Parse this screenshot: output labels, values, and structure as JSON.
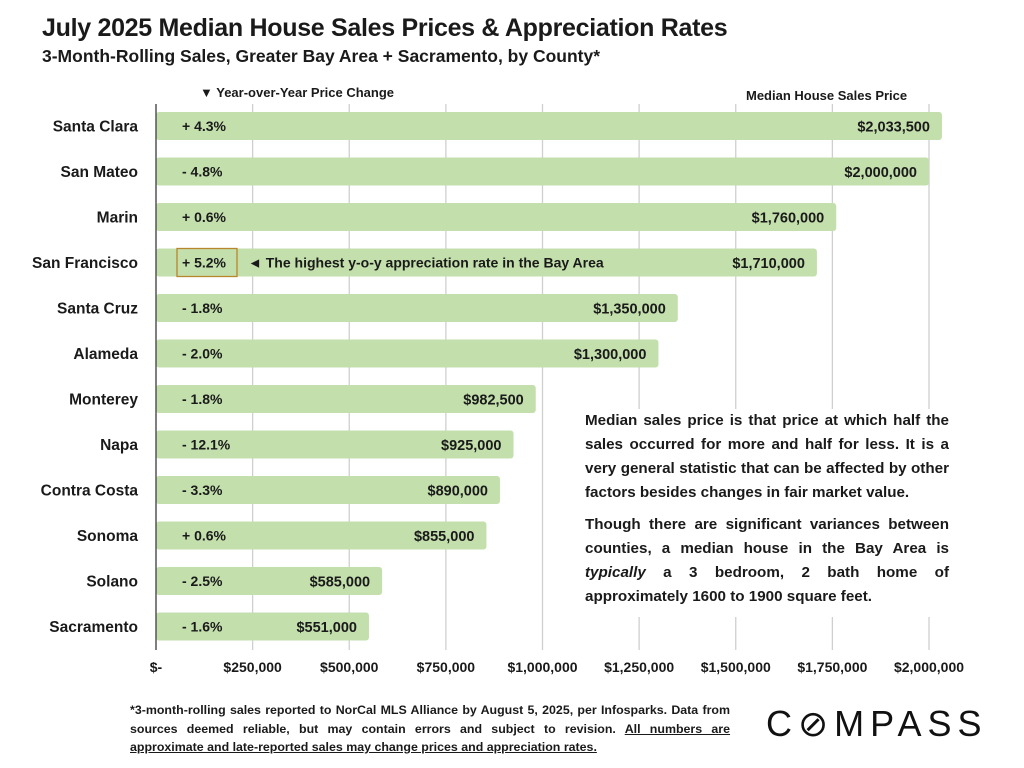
{
  "chart_data": {
    "type": "bar",
    "orientation": "horizontal",
    "title": "July 2025 Median House Sales Prices & Appreciation Rates",
    "subtitle": "3-Month-Rolling Sales, Greater Bay Area + Sacramento, by County*",
    "yoy_header": "▼ Year-over-Year Price Change",
    "value_header": "Median House Sales Price",
    "xlabel": "",
    "ylabel": "",
    "xlim": [
      0,
      2000000
    ],
    "grid": true,
    "x_ticks": [
      0,
      250000,
      500000,
      750000,
      1000000,
      1250000,
      1500000,
      1750000,
      2000000
    ],
    "x_tick_labels": [
      "$-",
      "$250,000",
      "$500,000",
      "$750,000",
      "$1,000,000",
      "$1,250,000",
      "$1,500,000",
      "$1,750,000",
      "$2,000,000"
    ],
    "bar_color": "#c3dfac",
    "categories": [
      "Santa Clara",
      "San Mateo",
      "Marin",
      "San Francisco",
      "Santa Cruz",
      "Alameda",
      "Monterey",
      "Napa",
      "Contra Costa",
      "Sonoma",
      "Solano",
      "Sacramento"
    ],
    "values": [
      2033500,
      2000000,
      1760000,
      1710000,
      1350000,
      1300000,
      982500,
      925000,
      890000,
      855000,
      585000,
      551000
    ],
    "value_labels": [
      "$2,033,500",
      "$2,000,000",
      "$1,760,000",
      "$1,710,000",
      "$1,350,000",
      "$1,300,000",
      "$982,500",
      "$925,000",
      "$890,000",
      "$855,000",
      "$585,000",
      "$551,000"
    ],
    "yoy_change_pct": [
      4.3,
      -4.8,
      0.6,
      5.2,
      -1.8,
      -2.0,
      -1.8,
      -12.1,
      -3.3,
      0.6,
      -2.5,
      -1.6
    ],
    "yoy_labels": [
      "+ 4.3%",
      "- 4.8%",
      "+ 0.6%",
      "+ 5.2%",
      "- 1.8%",
      "- 2.0%",
      "- 1.8%",
      "- 12.1%",
      "- 3.3%",
      "+ 0.6%",
      "- 2.5%",
      "- 1.6%"
    ],
    "highlight": {
      "category": "San Francisco",
      "box_color": "#b8862b",
      "annotation": "◄ The highest y-o-y appreciation rate in the Bay Area"
    }
  },
  "note": {
    "paragraph1": "Median sales price is that price at which half the sales occurred for more and half for less. It is a very general statistic that can be affected by other factors besides changes in fair market value.",
    "paragraph2_before": "Though there are significant variances between counties, a median house in the Bay Area is ",
    "paragraph2_italic": "typically",
    "paragraph2_after": " a 3 bedroom, 2 bath home of approximately 1600 to 1900 square feet."
  },
  "footnote": {
    "plain": "*3-month-rolling sales reported to NorCal MLS Alliance by August 5, 2025, per Infosparks. Data from sources deemed reliable, but may contain errors and subject to revision. ",
    "underlined": "All numbers are approximate and late-reported sales may change prices and appreciation rates."
  },
  "logo": "C⊘MPASS"
}
